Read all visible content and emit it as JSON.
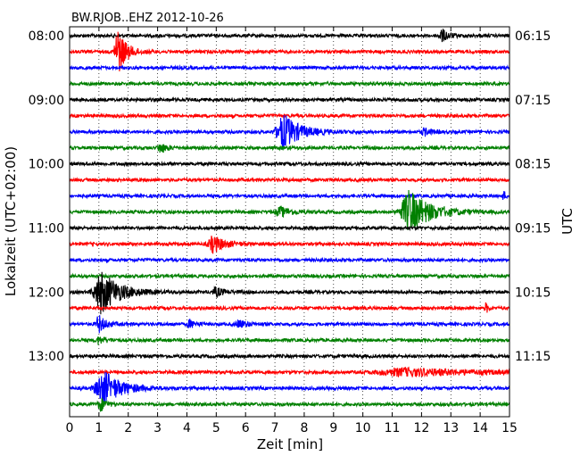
{
  "chart_data": {
    "type": "line",
    "title": "BW.RJOB..EHZ 2012-10-26",
    "xlabel": "Zeit  [min]",
    "ylabel_left": "Lokalzeit (UTC+02:00)",
    "ylabel_right": "UTC",
    "xlim": [
      0,
      15
    ],
    "x_ticks": [
      "0",
      "1",
      "2",
      "3",
      "4",
      "5",
      "6",
      "7",
      "8",
      "9",
      "10",
      "11",
      "12",
      "13",
      "14",
      "15"
    ],
    "grid": {
      "vertical": true,
      "style": "dotted"
    },
    "trace_count": 24,
    "trace_start_local": "08:00",
    "trace_interval_minutes": 15,
    "colors": [
      "#000000",
      "#ff0000",
      "#0000ff",
      "#008000"
    ],
    "left_ticks": [
      {
        "trace": 0,
        "label": "08:00"
      },
      {
        "trace": 4,
        "label": "09:00"
      },
      {
        "trace": 8,
        "label": "10:00"
      },
      {
        "trace": 12,
        "label": "11:00"
      },
      {
        "trace": 16,
        "label": "12:00"
      },
      {
        "trace": 20,
        "label": "13:00"
      }
    ],
    "right_ticks": [
      {
        "trace": 0,
        "label": "06:15"
      },
      {
        "trace": 4,
        "label": "07:15"
      },
      {
        "trace": 8,
        "label": "08:15"
      },
      {
        "trace": 12,
        "label": "09:15"
      },
      {
        "trace": 16,
        "label": "10:15"
      },
      {
        "trace": 20,
        "label": "11:15"
      }
    ],
    "events": [
      {
        "trace": 0,
        "t": 12.7,
        "amp": 1.0,
        "dur": 0.5
      },
      {
        "trace": 1,
        "t": 1.65,
        "amp": 3.8,
        "dur": 0.6
      },
      {
        "trace": 6,
        "t": 7.3,
        "amp": 2.8,
        "dur": 1.2
      },
      {
        "trace": 6,
        "t": 12.1,
        "amp": 0.6,
        "dur": 0.5
      },
      {
        "trace": 7,
        "t": 3.1,
        "amp": 0.8,
        "dur": 0.5
      },
      {
        "trace": 10,
        "t": 14.8,
        "amp": 0.7,
        "dur": 0.2
      },
      {
        "trace": 11,
        "t": 7.2,
        "amp": 0.8,
        "dur": 0.8
      },
      {
        "trace": 11,
        "t": 11.6,
        "amp": 3.4,
        "dur": 1.5
      },
      {
        "trace": 13,
        "t": 4.9,
        "amp": 1.3,
        "dur": 0.9
      },
      {
        "trace": 16,
        "t": 1.1,
        "amp": 3.4,
        "dur": 1.3
      },
      {
        "trace": 16,
        "t": 5.0,
        "amp": 0.7,
        "dur": 0.6
      },
      {
        "trace": 17,
        "t": 14.2,
        "amp": 0.9,
        "dur": 0.15
      },
      {
        "trace": 18,
        "t": 1.0,
        "amp": 1.4,
        "dur": 0.5
      },
      {
        "trace": 18,
        "t": 4.1,
        "amp": 0.6,
        "dur": 0.5
      },
      {
        "trace": 18,
        "t": 5.8,
        "amp": 0.6,
        "dur": 0.6
      },
      {
        "trace": 19,
        "t": 1.0,
        "amp": 0.6,
        "dur": 0.5
      },
      {
        "trace": 21,
        "t": 11.5,
        "amp": 0.6,
        "dur": 5.0
      },
      {
        "trace": 22,
        "t": 1.15,
        "amp": 2.8,
        "dur": 1.3
      },
      {
        "trace": 23,
        "t": 1.05,
        "amp": 1.2,
        "dur": 0.4
      }
    ]
  }
}
